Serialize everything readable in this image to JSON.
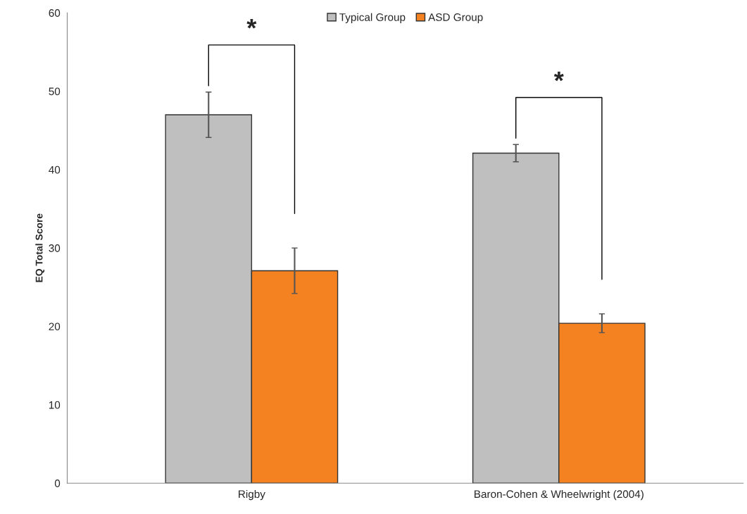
{
  "chart_data": {
    "type": "bar",
    "ylabel": "EQ Total Score",
    "categories": [
      "Rigby",
      "Baron-Cohen & Wheelwright (2004)"
    ],
    "series": [
      {
        "name": "Typical Group",
        "color": "#bfbfbf",
        "values": [
          47.0,
          42.1
        ],
        "errors": [
          2.9,
          1.1
        ]
      },
      {
        "name": "ASD Group",
        "color": "#f58220",
        "values": [
          27.1,
          20.4
        ],
        "errors": [
          2.9,
          1.2
        ]
      }
    ],
    "ylim": [
      0,
      60
    ],
    "yticks": [
      0,
      10,
      20,
      30,
      40,
      50,
      60
    ],
    "grid": false,
    "legend": "top",
    "annotations": [
      "*",
      "*"
    ]
  }
}
